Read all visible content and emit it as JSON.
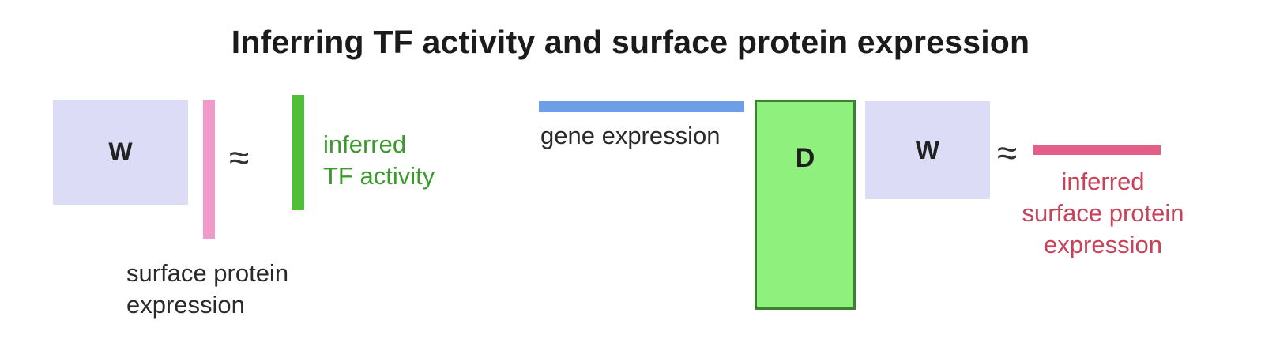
{
  "diagram": {
    "title": "Inferring TF activity and surface protein expression",
    "left_panel": {
      "matrix_label": "W",
      "approx_symbol": "≈",
      "input_vector_label_line1": "surface protein",
      "input_vector_label_line2": "expression",
      "output_label_line1": "inferred",
      "output_label_line2": "TF activity"
    },
    "right_panel": {
      "input_vector_label": "gene expression",
      "d_matrix_label": "D",
      "w_matrix_label": "W",
      "approx_symbol": "≈",
      "output_label_line1": "inferred",
      "output_label_line2": "surface protein",
      "output_label_line3": "expression"
    }
  },
  "colors": {
    "w_matrix": "#dcdcf6",
    "surface_protein_vector": "#ef9ac9",
    "tf_activity_vector": "#4fbf3a",
    "tf_activity_text": "#3c9a2c",
    "gene_expression_vector": "#6f9ee8",
    "d_matrix_fill": "#90f07e",
    "d_matrix_border": "#3d7f33",
    "inferred_surface_vector": "#e35f88",
    "inferred_surface_text": "#c8425a"
  }
}
